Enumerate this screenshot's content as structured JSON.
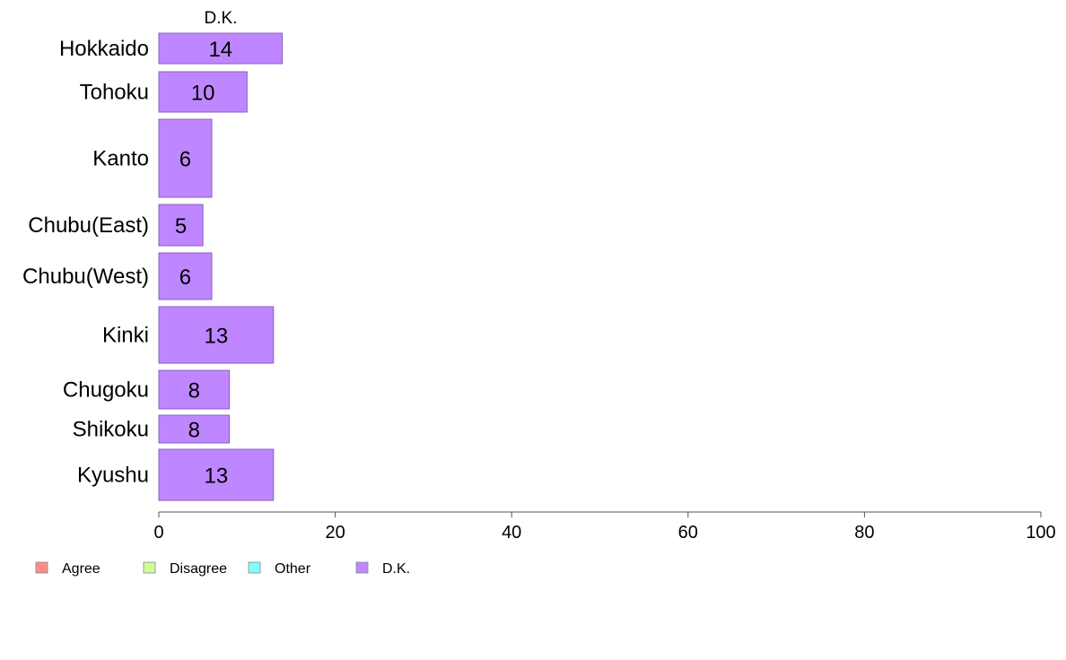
{
  "chart_data": {
    "type": "bar",
    "orientation": "horizontal",
    "stacked": true,
    "column_label": "D.K.",
    "categories": [
      "Hokkaido",
      "Tohoku",
      "Kanto",
      "Chubu(East)",
      "Chubu(West)",
      "Kinki",
      "Chugoku",
      "Shikoku",
      "Kyushu"
    ],
    "series": [
      {
        "name": "D.K.",
        "values": [
          14,
          10,
          6,
          5,
          6,
          13,
          8,
          8,
          13
        ],
        "color": "#bf87ff"
      }
    ],
    "data_labels": [
      "14",
      "10",
      "6",
      "5",
      "6",
      "13",
      "8",
      "8",
      "13"
    ],
    "xlim": [
      0,
      100
    ],
    "xticks": [
      0,
      20,
      40,
      60,
      80,
      100
    ],
    "xtick_labels": [
      "0",
      "20",
      "40",
      "60",
      "80",
      "100"
    ],
    "grid": false,
    "legend": {
      "placement": "bottom-left",
      "entries": [
        {
          "label": "Agree",
          "color": "#ff8c8c"
        },
        {
          "label": "Disagree",
          "color": "#ccff99"
        },
        {
          "label": "Other",
          "color": "#80ffff"
        },
        {
          "label": "D.K.",
          "color": "#bf87ff"
        }
      ]
    }
  }
}
